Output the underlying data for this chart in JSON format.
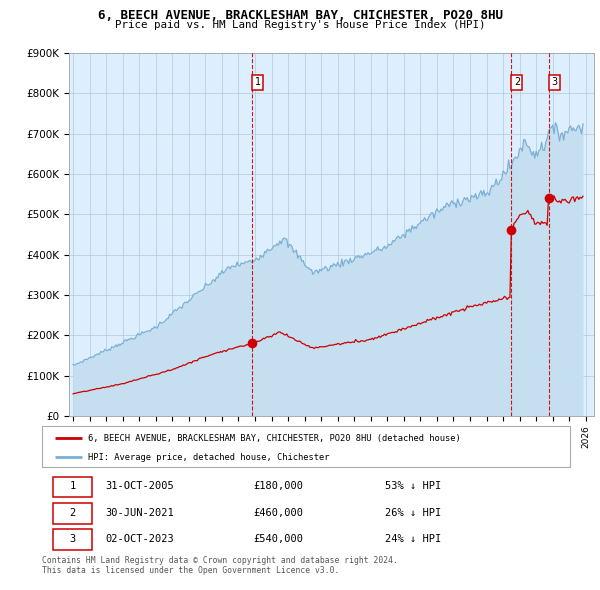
{
  "title": "6, BEECH AVENUE, BRACKLESHAM BAY, CHICHESTER, PO20 8HU",
  "subtitle": "Price paid vs. HM Land Registry's House Price Index (HPI)",
  "xlim_start": 1994.75,
  "xlim_end": 2026.5,
  "ylim": [
    0,
    900000
  ],
  "yticks": [
    0,
    100000,
    200000,
    300000,
    400000,
    500000,
    600000,
    700000,
    800000,
    900000
  ],
  "ytick_labels": [
    "£0",
    "£100K",
    "£200K",
    "£300K",
    "£400K",
    "£500K",
    "£600K",
    "£700K",
    "£800K",
    "£900K"
  ],
  "transactions": [
    {
      "num": 1,
      "date_num": 2005.83,
      "price": 180000,
      "label": "1",
      "pct": "53%",
      "date_str": "31-OCT-2005"
    },
    {
      "num": 2,
      "date_num": 2021.5,
      "price": 460000,
      "label": "2",
      "pct": "26%",
      "date_str": "30-JUN-2021"
    },
    {
      "num": 3,
      "date_num": 2023.75,
      "price": 540000,
      "label": "3",
      "pct": "24%",
      "date_str": "02-OCT-2023"
    }
  ],
  "hpi_color": "#7aafd4",
  "hpi_fill_color": "#c5dff0",
  "price_color": "#cc0000",
  "vline_color": "#cc0000",
  "bg_color": "#ddeeff",
  "grid_color": "#b0c8dd",
  "legend_label_red": "6, BEECH AVENUE, BRACKLESHAM BAY, CHICHESTER, PO20 8HU (detached house)",
  "legend_label_blue": "HPI: Average price, detached house, Chichester",
  "footer": "Contains HM Land Registry data © Crown copyright and database right 2024.\nThis data is licensed under the Open Government Licence v3.0."
}
